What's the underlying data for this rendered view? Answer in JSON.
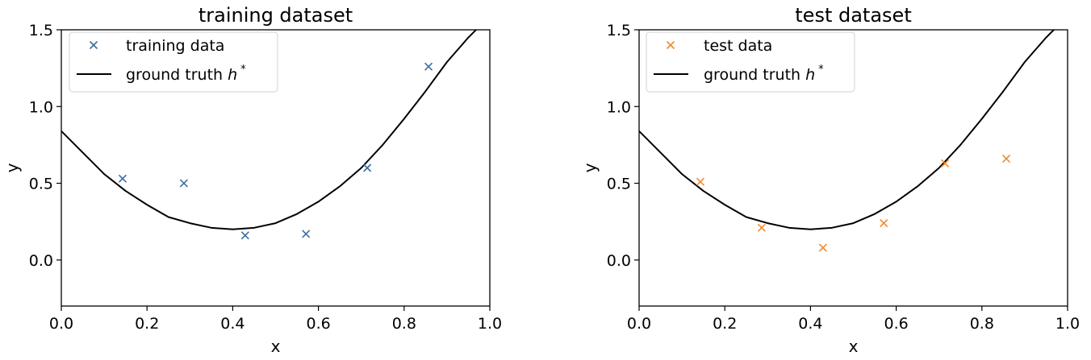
{
  "chart_data": [
    {
      "type": "scatter",
      "title": "training dataset",
      "xlabel": "x",
      "ylabel": "y",
      "xlim": [
        0.0,
        1.0
      ],
      "ylim": [
        -0.3,
        1.5
      ],
      "xticks": [
        0.0,
        0.2,
        0.4,
        0.6,
        0.8,
        1.0
      ],
      "xtick_labels": [
        "0.0",
        "0.2",
        "0.4",
        "0.6",
        "0.8",
        "1.0"
      ],
      "yticks": [
        0.0,
        0.5,
        1.0,
        1.5
      ],
      "ytick_labels": [
        "0.0",
        "0.5",
        "1.0",
        "1.5"
      ],
      "grid": false,
      "legend_position": "top-left",
      "points": {
        "name": "training data",
        "marker": "x",
        "color": "#3a6fa0",
        "x": [
          0.143,
          0.286,
          0.429,
          0.571,
          0.714,
          0.857
        ],
        "y": [
          0.53,
          0.5,
          0.16,
          0.17,
          0.6,
          1.26
        ]
      },
      "curve": {
        "name": "ground truth",
        "name_math": "h",
        "name_sup": "*",
        "color": "#000000",
        "x": [
          0.0,
          0.05,
          0.1,
          0.15,
          0.2,
          0.25,
          0.3,
          0.35,
          0.4,
          0.45,
          0.5,
          0.55,
          0.6,
          0.65,
          0.7,
          0.75,
          0.8,
          0.85,
          0.9,
          0.95,
          0.975
        ],
        "y": [
          0.84,
          0.7,
          0.56,
          0.45,
          0.36,
          0.28,
          0.24,
          0.21,
          0.2,
          0.21,
          0.24,
          0.3,
          0.38,
          0.48,
          0.6,
          0.75,
          0.92,
          1.1,
          1.29,
          1.45,
          1.52
        ]
      }
    },
    {
      "type": "scatter",
      "title": "test dataset",
      "xlabel": "x",
      "ylabel": "y",
      "xlim": [
        0.0,
        1.0
      ],
      "ylim": [
        -0.3,
        1.5
      ],
      "xticks": [
        0.0,
        0.2,
        0.4,
        0.6,
        0.8,
        1.0
      ],
      "xtick_labels": [
        "0.0",
        "0.2",
        "0.4",
        "0.6",
        "0.8",
        "1.0"
      ],
      "yticks": [
        0.0,
        0.5,
        1.0,
        1.5
      ],
      "ytick_labels": [
        "0.0",
        "0.5",
        "1.0",
        "1.5"
      ],
      "grid": false,
      "legend_position": "top-left",
      "points": {
        "name": "test data",
        "marker": "x",
        "color": "#f08a2c",
        "x": [
          0.143,
          0.286,
          0.429,
          0.571,
          0.714,
          0.857
        ],
        "y": [
          0.51,
          0.21,
          0.08,
          0.24,
          0.63,
          0.66
        ]
      },
      "curve": {
        "name": "ground truth",
        "name_math": "h",
        "name_sup": "*",
        "color": "#000000",
        "x": [
          0.0,
          0.05,
          0.1,
          0.15,
          0.2,
          0.25,
          0.3,
          0.35,
          0.4,
          0.45,
          0.5,
          0.55,
          0.6,
          0.65,
          0.7,
          0.75,
          0.8,
          0.85,
          0.9,
          0.95,
          0.975
        ],
        "y": [
          0.84,
          0.7,
          0.56,
          0.45,
          0.36,
          0.28,
          0.24,
          0.21,
          0.2,
          0.21,
          0.24,
          0.3,
          0.38,
          0.48,
          0.6,
          0.75,
          0.92,
          1.1,
          1.29,
          1.45,
          1.52
        ]
      }
    }
  ]
}
